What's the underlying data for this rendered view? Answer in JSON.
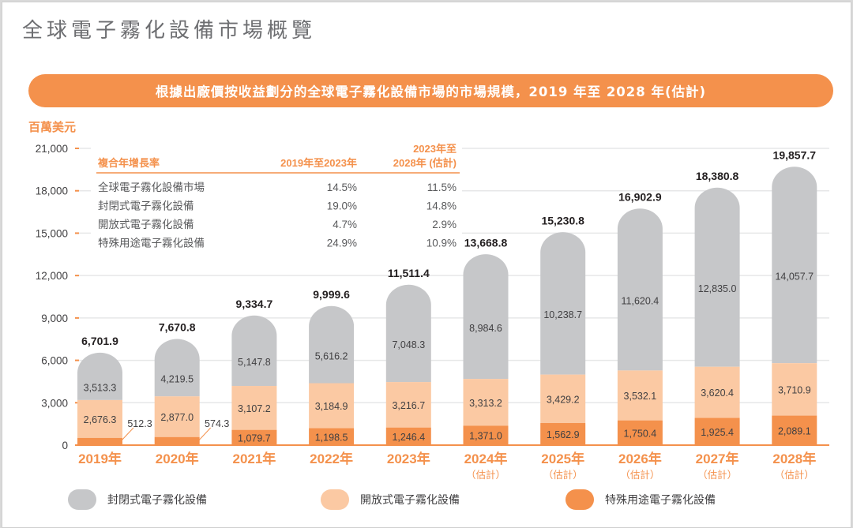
{
  "page": {
    "title": "全球電子霧化設備市場概覽",
    "banner": "根據出廠價按收益劃分的全球電子霧化設備市場的市場規模，2019 年至 2028 年(估計)",
    "unit": "百萬美元"
  },
  "colors": {
    "closed": "#c6c7c9",
    "open": "#fbc9a3",
    "special": "#f4914c",
    "accent": "#f4914c",
    "grid": "#e6e7e8"
  },
  "cagr_table": {
    "header": [
      "複合年增長率",
      "2019年至2023年",
      "2023年至",
      "2028年 (估計)"
    ],
    "rows": [
      {
        "name": "全球電子霧化設備市場",
        "v1": "14.5%",
        "v2": "11.5%"
      },
      {
        "name": "封閉式電子霧化設備",
        "v1": "19.0%",
        "v2": "14.8%"
      },
      {
        "name": "開放式電子霧化設備",
        "v1": "4.7%",
        "v2": "2.9%"
      },
      {
        "name": "特殊用途電子霧化設備",
        "v1": "24.9%",
        "v2": "10.9%"
      }
    ]
  },
  "legend": [
    {
      "key": "closed",
      "label": "封閉式電子霧化設備"
    },
    {
      "key": "open",
      "label": "開放式電子霧化設備"
    },
    {
      "key": "special",
      "label": "特殊用途電子霧化設備"
    }
  ],
  "chart_data": {
    "type": "bar",
    "stacked": true,
    "title": "根據出廠價按收益劃分的全球電子霧化設備市場的市場規模，2019 年至 2028 年(估計)",
    "ylabel": "百萬美元",
    "xlabel": "",
    "ylim": [
      0,
      21000
    ],
    "yticks": [
      0,
      3000,
      6000,
      9000,
      12000,
      15000,
      18000,
      21000
    ],
    "ytick_labels": [
      "0",
      "3,000",
      "6,000",
      "9,000",
      "12,000",
      "15,000",
      "18,000",
      "21,000"
    ],
    "grid": true,
    "legend_position": "bottom",
    "categories": [
      "2019年",
      "2020年",
      "2021年",
      "2022年",
      "2023年",
      "2024年",
      "2025年",
      "2026年",
      "2027年",
      "2028年"
    ],
    "category_sublabels": [
      "",
      "",
      "",
      "",
      "",
      "（估計）",
      "（估計）",
      "（估計）",
      "（估計）",
      "（估計）"
    ],
    "series": [
      {
        "name": "特殊用途電子霧化設備",
        "key": "special",
        "values": [
          512.3,
          574.3,
          1079.7,
          1198.5,
          1246.4,
          1371.0,
          1562.9,
          1750.4,
          1925.4,
          2089.1
        ],
        "labels": [
          "512.3",
          "574.3",
          "1,079.7",
          "1,198.5",
          "1,246.4",
          "1,371.0",
          "1,562.9",
          "1,750.4",
          "1,925.4",
          "2,089.1"
        ]
      },
      {
        "name": "開放式電子霧化設備",
        "key": "open",
        "values": [
          2676.3,
          2877.0,
          3107.2,
          3184.9,
          3216.7,
          3313.2,
          3429.2,
          3532.1,
          3620.4,
          3710.9
        ],
        "labels": [
          "2,676.3",
          "2,877.0",
          "3,107.2",
          "3,184.9",
          "3,216.7",
          "3,313.2",
          "3,429.2",
          "3,532.1",
          "3,620.4",
          "3,710.9"
        ]
      },
      {
        "name": "封閉式電子霧化設備",
        "key": "closed",
        "values": [
          3513.3,
          4219.5,
          5147.8,
          5616.2,
          7048.3,
          8984.6,
          10238.7,
          11620.4,
          12835.0,
          14057.7
        ],
        "labels": [
          "3,513.3",
          "4,219.5",
          "5,147.8",
          "5,616.2",
          "7,048.3",
          "8,984.6",
          "10,238.7",
          "11,620.4",
          "12,835.0",
          "14,057.7"
        ]
      }
    ],
    "totals": [
      6701.9,
      7670.8,
      9334.7,
      9999.6,
      11511.4,
      13668.8,
      15230.8,
      16902.9,
      18380.8,
      19857.7
    ],
    "total_labels": [
      "6,701.9",
      "7,670.8",
      "9,334.7",
      "9,999.6",
      "11,511.4",
      "13,668.8",
      "15,230.8",
      "16,902.9",
      "18,380.8",
      "19,857.7"
    ]
  }
}
